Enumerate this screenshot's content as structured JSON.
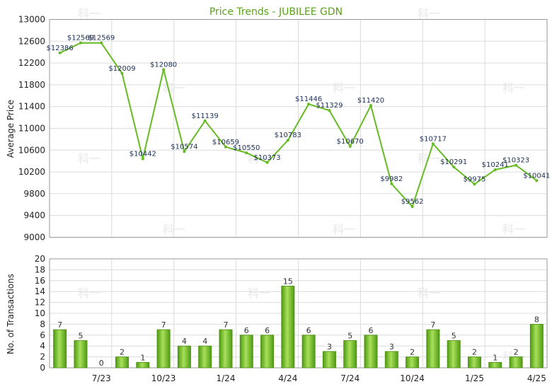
{
  "chart_data": [
    {
      "type": "line",
      "title": "Price Trends - JUBILEE GDN",
      "ylabel": "Average Price",
      "ylim": [
        9000,
        13000
      ],
      "yticks": [
        9000,
        9400,
        9800,
        10200,
        10600,
        11000,
        11400,
        11800,
        12200,
        12600,
        13000
      ],
      "grid": true,
      "series": [
        {
          "color": "#66bb22",
          "values": [
            12386,
            12569,
            12569,
            12009,
            10442,
            12080,
            10574,
            11139,
            10659,
            10550,
            10373,
            10783,
            11446,
            11329,
            10670,
            11420,
            9982,
            9562,
            10717,
            10291,
            9975,
            10241,
            10323,
            10041
          ],
          "labels": [
            "$12386",
            "$12569",
            "$12569",
            "$12009",
            "$10442",
            "$12080",
            "$10574",
            "$11139",
            "$10659",
            "$10550",
            "$10373",
            "$10783",
            "$11446",
            "$11329",
            "$10670",
            "$11420",
            "$9982",
            "$9562",
            "$10717",
            "$10291",
            "$9975",
            "$10241",
            "$10323",
            "$10041"
          ]
        }
      ]
    },
    {
      "type": "bar",
      "ylabel": "No. of Transactions",
      "ylim": [
        0,
        20
      ],
      "yticks": [
        0,
        2,
        4,
        6,
        8,
        10,
        12,
        14,
        16,
        18,
        20
      ],
      "grid": true,
      "values": [
        7,
        5,
        0,
        2,
        1,
        7,
        4,
        4,
        7,
        6,
        6,
        15,
        6,
        3,
        5,
        6,
        3,
        2,
        7,
        5,
        2,
        1,
        2,
        8
      ],
      "xtick_labels": [
        "",
        "",
        "7/23",
        "",
        "",
        "10/23",
        "",
        "",
        "1/24",
        "",
        "",
        "4/24",
        "",
        "",
        "7/24",
        "",
        "",
        "10/24",
        "",
        "",
        "1/25",
        "",
        "",
        "4/25"
      ],
      "color": "#66bb22"
    }
  ]
}
